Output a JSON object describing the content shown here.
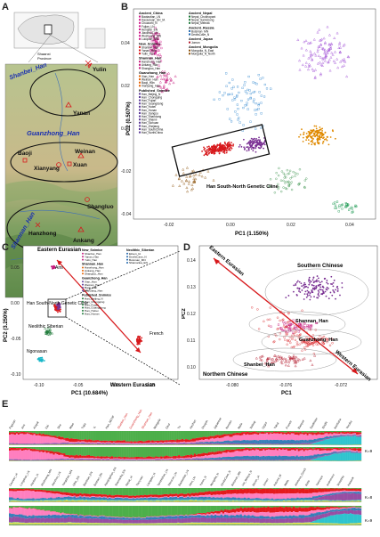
{
  "panel_letters": [
    "A",
    "B",
    "C",
    "D",
    "E"
  ],
  "panelA": {
    "inset_labels": [
      "Shaanxi",
      "Province"
    ],
    "regions": [
      {
        "name": "Shanbei_Han",
        "color": "#1a2fb0"
      },
      {
        "name": "Guanzhong_Han",
        "color": "#1a2fb0"
      },
      {
        "name": "Shannan_Han",
        "color": "#1a2fb0"
      }
    ],
    "cities": [
      "Yulin",
      "Yanan",
      "Baoji",
      "Weinan",
      "Xuan",
      "Xianyang",
      "Shangluo",
      "Hanzhong",
      "Ankang"
    ]
  },
  "panelB": {
    "xlabel": "PC1 (1.150%)",
    "ylabel": "PC2 (0.507%)",
    "xticks": [
      "-0.02",
      "0.00",
      "0.02",
      "0.04"
    ],
    "yticks": [
      "0.04",
      "0.02",
      "0.00",
      "-0.02",
      "-0.04"
    ],
    "box_label": "Han South-North Genetic Cline",
    "legend_groups": [
      {
        "title": "Ancient_China",
        "items": [
          "Baotaotian_LN",
          "Dacaoluan_SH_IA",
          "Chuanzhi_N",
          "Fujian_LN",
          "Hengbei_EN",
          "Jiaozhou_LN",
          "Wuzhuang_MN",
          "Luoquan_MN"
        ]
      },
      {
        "title": "New_Snimice",
        "items": [
          "Shanbei_Han",
          "Yanan_Han",
          "Yulin_Han"
        ]
      },
      {
        "title": "Shannan_Han",
        "items": [
          "Hanzhong_Han",
          "Ankang_Han",
          "Shangluo_Han"
        ]
      },
      {
        "title": "Guanzhong_Han",
        "items": [
          "Xian_Han",
          "Weinan_Han",
          "Baoji_Han",
          "Xianyang_Han"
        ]
      },
      {
        "title": "Published_Snimice",
        "items": [
          "Han_Beijing_N",
          "Han_Chongqing",
          "Han_Fujian",
          "Han_Guangdong",
          "Han_Hubei",
          "Han_Hunan",
          "Han_Jiangsu",
          "Han_Shandong",
          "Han_Shanxi",
          "Han_Sichuan",
          "Han_Zhejiang",
          "Han_SouthChina",
          "Han_NorthChina"
        ]
      },
      {
        "title": "Ancient_Nepal",
        "items": [
          "Nepal_Chokhopani",
          "Nepal_Samdzong",
          "Nepal_Mebrak"
        ]
      },
      {
        "title": "Ancient_Russia",
        "items": [
          "Boisman_MN",
          "DevilsCave_N"
        ]
      },
      {
        "title": "Ancient_Japan",
        "items": [
          "Jomon"
        ]
      },
      {
        "title": "Ancient_Mongolia",
        "items": [
          "Mongolia_N_East",
          "Mongolia_N_North"
        ]
      }
    ]
  },
  "panelC": {
    "xlabel": "PC1 (10.684%)",
    "ylabel": "PC2 (3.250%)",
    "xticks": [
      "-0.10",
      "-0.05",
      "0.00",
      "0.05"
    ],
    "yticks": [
      "0.05",
      "0.00",
      "-0.05",
      "-0.10"
    ],
    "corner_labels": [
      "Eastern Eurasian",
      "Western Eurasian"
    ],
    "point_labels": [
      "Ami",
      "French",
      "Ngonasan",
      "Neolithic Siberian",
      "Han South-North\nGenetic Cline"
    ],
    "legend_groups": [
      {
        "title": "New_Snimice",
        "items": [
          "Shanbei_Han",
          "Yanan_Han",
          "Yulin_Han"
        ]
      },
      {
        "title": "Shannan_Han",
        "items": [
          "Hanzhong_Han",
          "Ankang_Han",
          "Shangluo_Han"
        ]
      },
      {
        "title": "Guanzhong_Han",
        "items": [
          "Xian_Han",
          "Weinan_Han",
          "Baoji_Han",
          "Xianyang_Han"
        ]
      },
      {
        "title": "Published_Snimice",
        "items": [
          "Han_Beijing_N",
          "Han_Chongqing",
          "Han_Fujian",
          "Han_Guangdong",
          "Han_Hubei",
          "Han_Hunan"
        ]
      },
      {
        "title": "Neolithic_Siberian",
        "items": [
          "Ekven_IA",
          "DevilsCave_N",
          "Boisman_MN",
          "Shamanka_EN"
        ]
      }
    ]
  },
  "panelD": {
    "xlabel": "PC1",
    "ylabel": "PC2",
    "xticks": [
      "-0.080",
      "-0.076",
      "-0.072"
    ],
    "yticks": [
      "0.14",
      "0.13",
      "0.12",
      "0.11",
      "0.10"
    ],
    "arrow_labels": [
      "Eastern Eurasian",
      "Western Eurasian"
    ],
    "group_labels": [
      "Southern Chinese",
      "Shannan_Han",
      "Guanzhong_Han",
      "Shanbei_Han",
      "Northern Chinese"
    ]
  },
  "panelE": {
    "k_labels": [
      "K=9",
      "K=8",
      "K=9"
    ],
    "top_labels": [
      "Papuan",
      "Ami",
      "Atayal",
      "Dai",
      "She",
      "Miao",
      "Tujia",
      "Yi",
      "Han_NCHF",
      "Shanbei_Han",
      "Guanzhong_Han",
      "Shannan_Han",
      "Mongola",
      "Daur",
      "Tu",
      "Hezhen",
      "Oroqen",
      "Japanese",
      "Korean",
      "Mala",
      "Selkup",
      "Uygur",
      "Yakut",
      "French",
      "Basque",
      "Sardinian",
      "Sindhi",
      "Karitiana",
      "Yoruba"
    ],
    "bottom_labels": [
      "Gaoxian_IA",
      "Longshan_LN",
      "Hanben_IA",
      "Wuzhuang_MN",
      "Jiaozhou_LN",
      "Yangshao_MN",
      "Qihe_EN",
      "Bianbian_EN",
      "Boshan_EN",
      "Xiaojingshan_EN",
      "Shamanka_EN",
      "Nepal_IA",
      "Tianyuan",
      "Liangdao_N",
      "Tanshishan_LN",
      "Xitoucun_LN",
      "Baotaotian_LN",
      "Hexi_LN",
      "Yumin_N",
      "Mongolia_N",
      "DevilsCave_N",
      "Boisman_MN",
      "Ust_Belaya_N",
      "Ekven_IA",
      "Jomon",
      "Kolyma_M",
      "Malta",
      "Afontova_Gora3",
      "Botai",
      "Yamnaya",
      "Andronovo",
      "Sintashta",
      "Karasuk"
    ],
    "highlight_color": "#d62728"
  },
  "colors": {
    "southern": "#7b3294",
    "northern": "#e08a00",
    "guanzhong": "#d7191c",
    "shannan": "#c51b7d",
    "shanbei": "#b2182b",
    "box": "#111111"
  }
}
